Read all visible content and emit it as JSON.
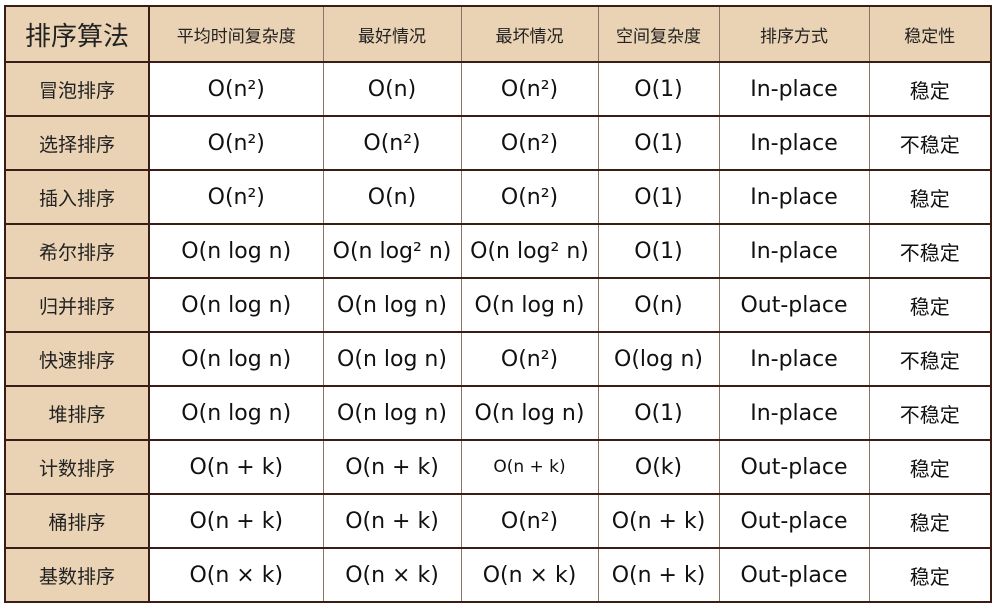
{
  "table": {
    "headers": [
      "排序算法",
      "平均时间复杂度",
      "最好情况",
      "最坏情况",
      "空间复杂度",
      "排序方式",
      "稳定性"
    ],
    "rows": [
      [
        "冒泡排序",
        "O(n²)",
        "O(n)",
        "O(n²)",
        "O(1)",
        "In-place",
        "稳定"
      ],
      [
        "选择排序",
        "O(n²)",
        "O(n²)",
        "O(n²)",
        "O(1)",
        "In-place",
        "不稳定"
      ],
      [
        "插入排序",
        "O(n²)",
        "O(n)",
        "O(n²)",
        "O(1)",
        "In-place",
        "稳定"
      ],
      [
        "希尔排序",
        "O(n log n)",
        "O(n log² n)",
        "O(n log² n)",
        "O(1)",
        "In-place",
        "不稳定"
      ],
      [
        "归并排序",
        "O(n log n)",
        "O(n log n)",
        "O(n log n)",
        "O(n)",
        "Out-place",
        "稳定"
      ],
      [
        "快速排序",
        "O(n log n)",
        "O(n log n)",
        "O(n²)",
        "O(log n)",
        "In-place",
        "不稳定"
      ],
      [
        "堆排序",
        "O(n log n)",
        "O(n log n)",
        "O(n log n)",
        "O(1)",
        "In-place",
        "不稳定"
      ],
      [
        "计数排序",
        "O(n + k)",
        "O(n + k)",
        "O(n + k)",
        "O(k)",
        "Out-place",
        "稳定"
      ],
      [
        "桶排序",
        "O(n + k)",
        "O(n + k)",
        "O(n²)",
        "O(n + k)",
        "Out-place",
        "稳定"
      ],
      [
        "基数排序",
        "O(n × k)",
        "O(n × k)",
        "O(n × k)",
        "O(n + k)",
        "Out-place",
        "稳定"
      ]
    ]
  },
  "colors": {
    "header_bg": "#ead2b4",
    "border": "#3a1e16"
  }
}
